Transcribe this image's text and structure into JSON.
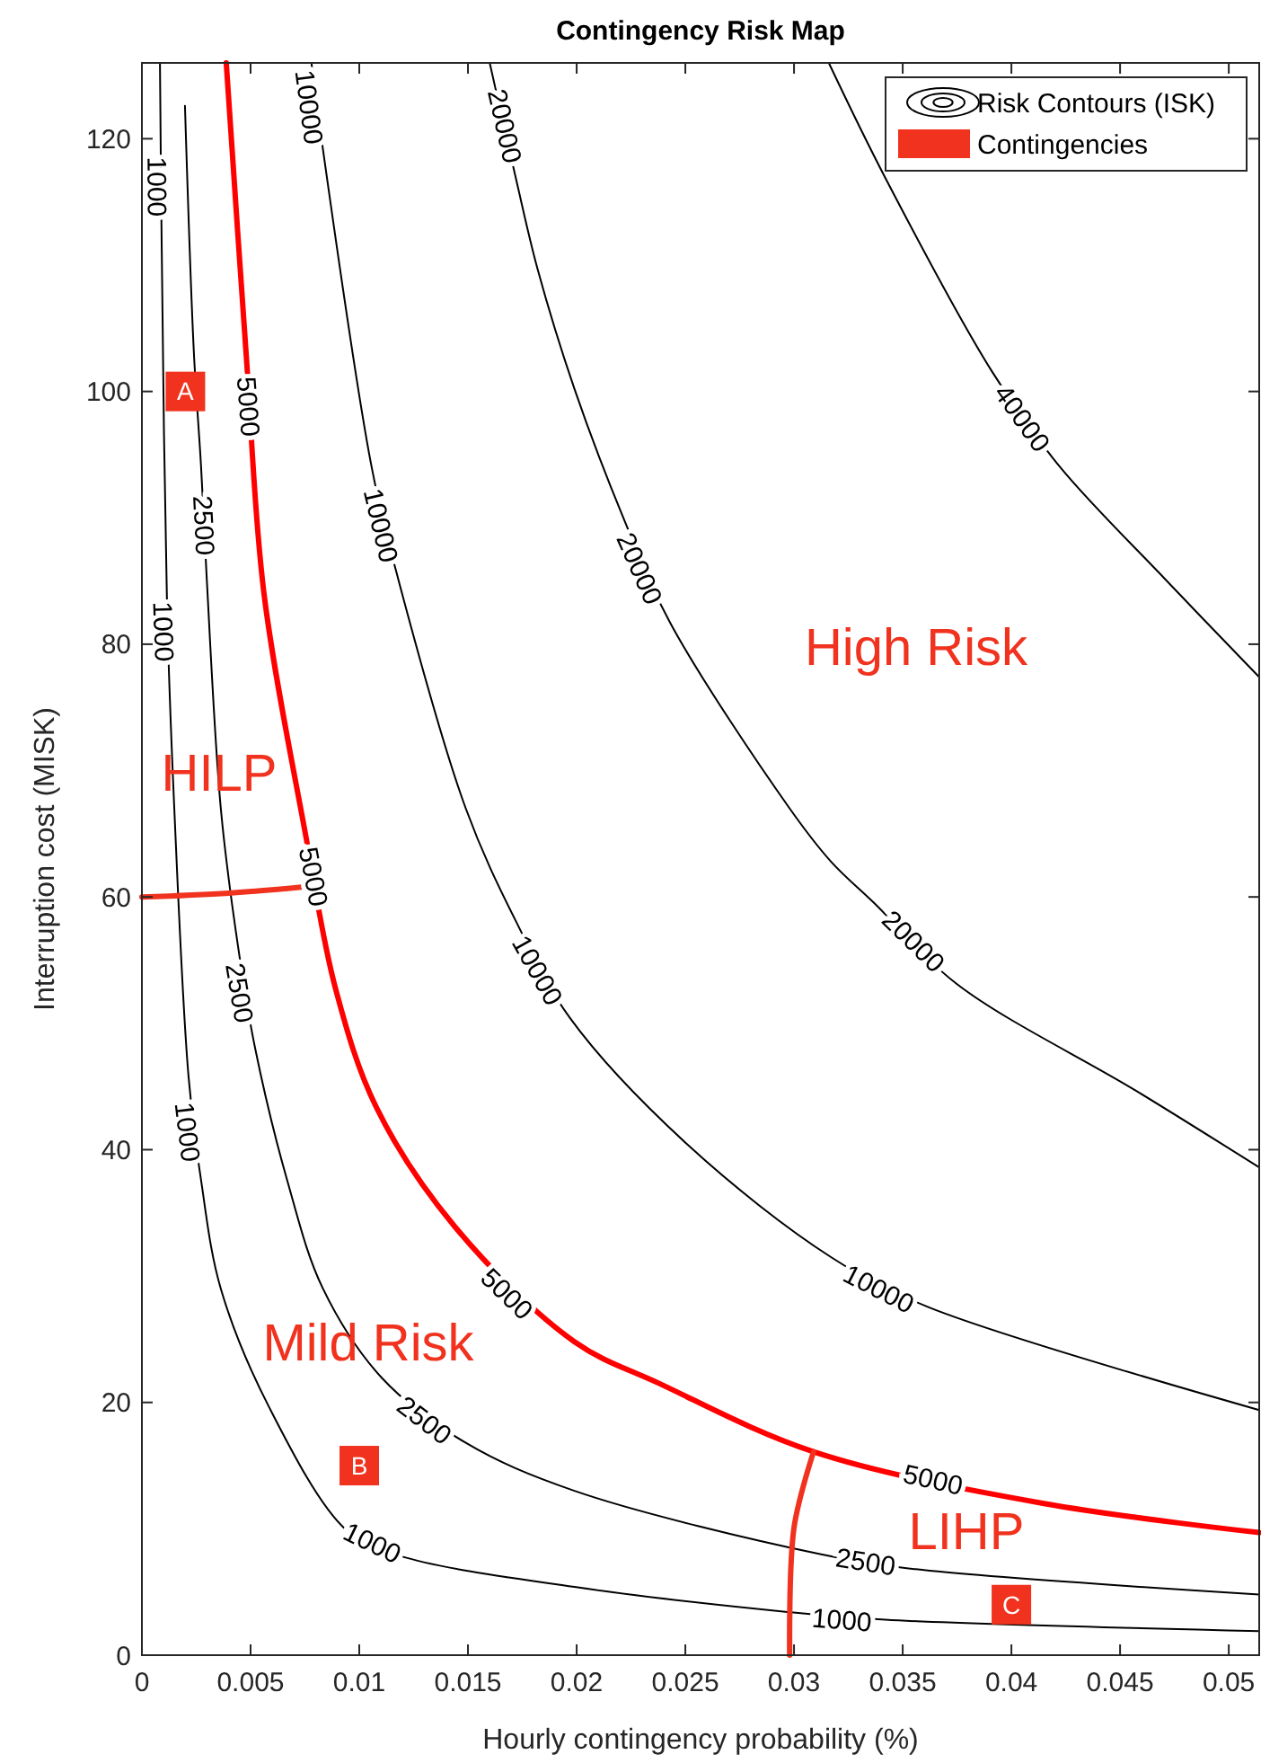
{
  "chart_data": {
    "type": "line",
    "title": "Contingency Risk Map",
    "xlabel": "Hourly contingency probability (%)",
    "ylabel": "Interruption cost (MISK)",
    "xlim": [
      0,
      0.0514
    ],
    "ylim": [
      0,
      126
    ],
    "xticks": [
      0,
      0.005,
      0.01,
      0.015,
      0.02,
      0.025,
      0.03,
      0.035,
      0.04,
      0.045,
      0.05
    ],
    "yticks": [
      0,
      20,
      40,
      60,
      80,
      100,
      120
    ],
    "grid": false,
    "legend": "top right",
    "line_style": "solid",
    "series": [
      {
        "name": "Risk Contours (ISK)",
        "color": "#000000",
        "x": [
          0.00083,
          0.00091,
          0.00116,
          0.00149,
          0.00215,
          0.00272,
          0.00363,
          0.00586,
          0.0094,
          0.0118,
          0.0199,
          0.0298,
          0.0342,
          0.0514,
          null,
          0.00198,
          0.00239,
          0.00272,
          0.00297,
          0.00363,
          0.00437,
          0.0052,
          0.00668,
          0.00833,
          0.01106,
          0.0149,
          0.0199,
          0.0312,
          0.0356,
          0.0514,
          null,
          0.0078,
          0.00817,
          0.01056,
          0.0118,
          0.0149,
          0.0172,
          0.0197,
          0.0251,
          0.0317,
          0.0361,
          0.0514,
          null,
          0.016,
          0.0172,
          0.0182,
          0.0199,
          0.0221,
          0.0243,
          0.0298,
          0.0317,
          0.0337,
          0.0375,
          0.0457,
          0.0514,
          null,
          0.0316,
          0.0342,
          0.0391,
          0.0422,
          0.0471,
          0.0514
        ],
        "values": [
          126,
          111.6,
          82.7,
          67,
          45.7,
          37.6,
          29,
          19.6,
          9.9,
          7.9,
          5.4,
          3.4,
          2.8,
          1.9,
          null,
          122.6,
          103.1,
          94.1,
          85.6,
          67,
          56.7,
          48.1,
          37.6,
          29,
          21.9,
          16.8,
          13,
          8,
          6.8,
          4.8,
          null,
          126,
          121.1,
          94.1,
          85.1,
          67,
          58.1,
          50.4,
          40.4,
          31.5,
          27.6,
          19.4,
          null,
          126,
          116.9,
          109.7,
          100.2,
          90.2,
          81.7,
          67,
          62.8,
          59.5,
          53.1,
          44.7,
          38.6,
          null,
          126,
          116.9,
          101.6,
          94.1,
          85.1,
          77.4
        ]
      },
      {
        "color": "#ff0000",
        "x": [
          0.00388,
          0.00479,
          0.00561,
          0.0075,
          0.0089,
          0.0108,
          0.0144,
          0.0199,
          0.0238,
          0.0309,
          0.0415,
          0.0514
        ],
        "values": [
          126,
          103.1,
          84.1,
          65.2,
          52.8,
          43.3,
          33.9,
          24.8,
          21.5,
          16.1,
          12,
          9.7
        ]
      },
      {
        "color": "#f0321e",
        "x": [
          0,
          0.004,
          0.0081
        ],
        "values": [
          60,
          60.3,
          60.9
        ]
      },
      {
        "color": "#f0321e",
        "x": [
          0.0298,
          0.03,
          0.0309
        ],
        "values": [
          0,
          10.1,
          16.1
        ]
      },
      {
        "name": "Contingencies",
        "type": "scatter",
        "marker": "square",
        "color": "#f0321e",
        "x": [
          0.002,
          0.01,
          0.04
        ],
        "values": [
          100,
          15,
          4
        ],
        "value_labels": [
          "A",
          "B",
          "C"
        ]
      }
    ],
    "annotations": [
      {
        "text": "1000",
        "x": 0.0007,
        "y": 116.2
      },
      {
        "text": "1000",
        "x": 0.001,
        "y": 81
      },
      {
        "text": "1000",
        "x": 0.0021,
        "y": 41.4
      },
      {
        "text": "1000",
        "x": 0.0106,
        "y": 8.9
      },
      {
        "text": "1000",
        "x": 0.0322,
        "y": 2.8
      },
      {
        "text": "2500",
        "x": 0.00286,
        "y": 89.4
      },
      {
        "text": "2500",
        "x": 0.0045,
        "y": 52.4
      },
      {
        "text": "2500",
        "x": 0.013,
        "y": 18.6
      },
      {
        "text": "2500",
        "x": 0.0333,
        "y": 7.4
      },
      {
        "text": "5000",
        "x": 0.0049,
        "y": 98.8
      },
      {
        "text": "5000",
        "x": 0.0079,
        "y": 61.6
      },
      {
        "text": "5000",
        "x": 0.0168,
        "y": 28.6
      },
      {
        "text": "5000",
        "x": 0.0364,
        "y": 13.9
      },
      {
        "text": "10000",
        "x": 0.0077,
        "y": 122.5
      },
      {
        "text": "10000",
        "x": 0.011,
        "y": 89.4
      },
      {
        "text": "10000",
        "x": 0.0182,
        "y": 54.2
      },
      {
        "text": "10000",
        "x": 0.0339,
        "y": 29
      },
      {
        "text": "20000",
        "x": 0.0167,
        "y": 121
      },
      {
        "text": "20000",
        "x": 0.0229,
        "y": 86
      },
      {
        "text": "20000",
        "x": 0.0355,
        "y": 56.5
      },
      {
        "text": "40000",
        "x": 0.0405,
        "y": 97.9
      },
      "High Risk",
      "HILP",
      "Mild Risk",
      "LIHP"
    ]
  }
}
